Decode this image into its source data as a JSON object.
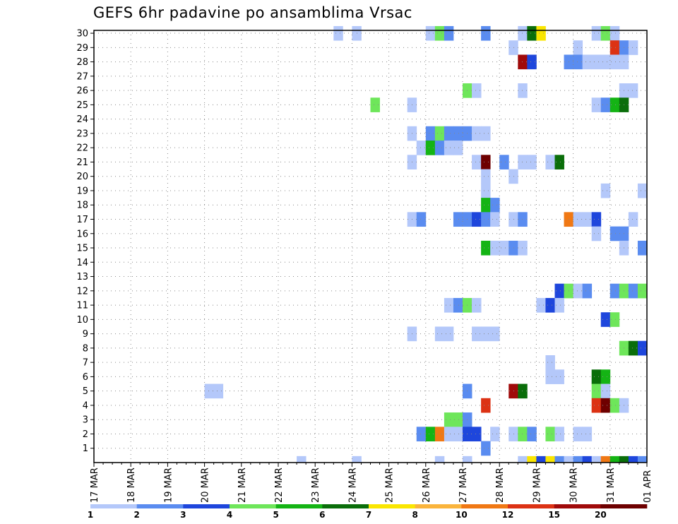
{
  "title": "GEFS 6hr padavine po ansamblima Vrsac",
  "colors": {
    "levels": [
      "#b4c8fa",
      "#5a8cf0",
      "#1e46dc",
      "#6ee65a",
      "#14b414",
      "#0a6e0a",
      "#fae600",
      "#fab43c",
      "#f07814",
      "#dc3214",
      "#a00a0a",
      "#6e0000"
    ],
    "grid": "#888888",
    "axis": "#000000"
  },
  "chart_data": {
    "type": "heatmap",
    "title": "GEFS 6hr padavine po ansamblima Vrsac",
    "x_ticks": [
      "17 MAR",
      "18 MAR",
      "19 MAR",
      "20 MAR",
      "21 MAR",
      "22 MAR",
      "23 MAR",
      "24 MAR",
      "25 MAR",
      "26 MAR",
      "27 MAR",
      "28 MAR",
      "29 MAR",
      "30 MAR",
      "31 MAR",
      "01 APR"
    ],
    "x_steps_per_day": 4,
    "x_range": [
      0,
      60
    ],
    "y_ticks": [
      1,
      2,
      3,
      4,
      5,
      6,
      7,
      8,
      9,
      10,
      11,
      12,
      13,
      14,
      15,
      16,
      17,
      18,
      19,
      20,
      21,
      22,
      23,
      24,
      25,
      26,
      27,
      28,
      29,
      30
    ],
    "y_range": [
      0,
      30
    ],
    "colorbar_labels": [
      "1",
      "2",
      "3",
      "4",
      "5",
      "6",
      "7",
      "8",
      "10",
      "12",
      "15",
      "20"
    ],
    "cells_note": "each entry: [time_step_index (6h steps from 17 MAR 00z), member, color_level_index (0 = 1 mm ... 11 = 20+ mm)]",
    "cells": [
      [
        26,
        30,
        0
      ],
      [
        28,
        30,
        0
      ],
      [
        36,
        30,
        0
      ],
      [
        37,
        30,
        3
      ],
      [
        38,
        30,
        1
      ],
      [
        42,
        30,
        1
      ],
      [
        46,
        30,
        0
      ],
      [
        47,
        30,
        5
      ],
      [
        48,
        30,
        6
      ],
      [
        54,
        30,
        0
      ],
      [
        55,
        30,
        3
      ],
      [
        56,
        30,
        0
      ],
      [
        45,
        29,
        0
      ],
      [
        52,
        29,
        0
      ],
      [
        56,
        29,
        9
      ],
      [
        57,
        29,
        1
      ],
      [
        58,
        29,
        0
      ],
      [
        46,
        28,
        10
      ],
      [
        47,
        28,
        2
      ],
      [
        51,
        28,
        1
      ],
      [
        52,
        28,
        1
      ],
      [
        53,
        28,
        0
      ],
      [
        54,
        28,
        0
      ],
      [
        55,
        28,
        0
      ],
      [
        56,
        28,
        0
      ],
      [
        57,
        28,
        0
      ],
      [
        40,
        26,
        3
      ],
      [
        41,
        26,
        0
      ],
      [
        46,
        26,
        0
      ],
      [
        57,
        26,
        0
      ],
      [
        58,
        26,
        0
      ],
      [
        30,
        25,
        3
      ],
      [
        34,
        25,
        0
      ],
      [
        54,
        25,
        0
      ],
      [
        55,
        25,
        1
      ],
      [
        56,
        25,
        4
      ],
      [
        57,
        25,
        5
      ],
      [
        34,
        23,
        0
      ],
      [
        36,
        23,
        1
      ],
      [
        37,
        23,
        3
      ],
      [
        38,
        23,
        1
      ],
      [
        39,
        23,
        1
      ],
      [
        40,
        23,
        1
      ],
      [
        41,
        23,
        0
      ],
      [
        42,
        23,
        0
      ],
      [
        35,
        22,
        0
      ],
      [
        36,
        22,
        4
      ],
      [
        37,
        22,
        1
      ],
      [
        38,
        22,
        0
      ],
      [
        39,
        22,
        0
      ],
      [
        34,
        21,
        0
      ],
      [
        41,
        21,
        0
      ],
      [
        42,
        21,
        11
      ],
      [
        44,
        21,
        1
      ],
      [
        46,
        21,
        0
      ],
      [
        47,
        21,
        0
      ],
      [
        49,
        21,
        0
      ],
      [
        50,
        21,
        5
      ],
      [
        42,
        20,
        0
      ],
      [
        45,
        20,
        0
      ],
      [
        42,
        19,
        0
      ],
      [
        55,
        19,
        0
      ],
      [
        59,
        19,
        0
      ],
      [
        42,
        18,
        4
      ],
      [
        43,
        18,
        1
      ],
      [
        34,
        17,
        0
      ],
      [
        35,
        17,
        1
      ],
      [
        39,
        17,
        1
      ],
      [
        40,
        17,
        1
      ],
      [
        41,
        17,
        2
      ],
      [
        42,
        17,
        1
      ],
      [
        43,
        17,
        0
      ],
      [
        45,
        17,
        0
      ],
      [
        46,
        17,
        1
      ],
      [
        51,
        17,
        8
      ],
      [
        52,
        17,
        0
      ],
      [
        53,
        17,
        0
      ],
      [
        54,
        17,
        2
      ],
      [
        58,
        17,
        0
      ],
      [
        54,
        16,
        0
      ],
      [
        56,
        16,
        1
      ],
      [
        57,
        16,
        1
      ],
      [
        42,
        15,
        4
      ],
      [
        43,
        15,
        0
      ],
      [
        44,
        15,
        0
      ],
      [
        45,
        15,
        1
      ],
      [
        46,
        15,
        0
      ],
      [
        57,
        15,
        0
      ],
      [
        59,
        15,
        1
      ],
      [
        50,
        12,
        2
      ],
      [
        51,
        12,
        3
      ],
      [
        52,
        12,
        0
      ],
      [
        53,
        12,
        1
      ],
      [
        56,
        12,
        1
      ],
      [
        57,
        12,
        3
      ],
      [
        58,
        12,
        1
      ],
      [
        59,
        12,
        3
      ],
      [
        38,
        11,
        0
      ],
      [
        39,
        11,
        1
      ],
      [
        40,
        11,
        3
      ],
      [
        41,
        11,
        0
      ],
      [
        48,
        11,
        0
      ],
      [
        49,
        11,
        2
      ],
      [
        50,
        11,
        0
      ],
      [
        55,
        10,
        2
      ],
      [
        56,
        10,
        3
      ],
      [
        34,
        9,
        0
      ],
      [
        37,
        9,
        0
      ],
      [
        38,
        9,
        0
      ],
      [
        41,
        9,
        0
      ],
      [
        42,
        9,
        0
      ],
      [
        43,
        9,
        0
      ],
      [
        57,
        8,
        3
      ],
      [
        58,
        8,
        5
      ],
      [
        59,
        8,
        2
      ],
      [
        49,
        7,
        0
      ],
      [
        49,
        6,
        0
      ],
      [
        50,
        6,
        0
      ],
      [
        54,
        6,
        5
      ],
      [
        55,
        6,
        4
      ],
      [
        12,
        5,
        0
      ],
      [
        13,
        5,
        0
      ],
      [
        40,
        5,
        1
      ],
      [
        45,
        5,
        10
      ],
      [
        46,
        5,
        5
      ],
      [
        54,
        5,
        3
      ],
      [
        55,
        5,
        0
      ],
      [
        42,
        4,
        9
      ],
      [
        54,
        4,
        9
      ],
      [
        55,
        4,
        11
      ],
      [
        56,
        4,
        3
      ],
      [
        57,
        4,
        0
      ],
      [
        38,
        3,
        3
      ],
      [
        39,
        3,
        3
      ],
      [
        40,
        3,
        1
      ],
      [
        35,
        2,
        1
      ],
      [
        36,
        2,
        4
      ],
      [
        37,
        2,
        8
      ],
      [
        38,
        2,
        0
      ],
      [
        39,
        2,
        0
      ],
      [
        40,
        2,
        2
      ],
      [
        41,
        2,
        2
      ],
      [
        43,
        2,
        0
      ],
      [
        45,
        2,
        0
      ],
      [
        46,
        2,
        3
      ],
      [
        47,
        2,
        1
      ],
      [
        49,
        2,
        3
      ],
      [
        50,
        2,
        0
      ],
      [
        52,
        2,
        0
      ],
      [
        53,
        2,
        0
      ],
      [
        42,
        1,
        1
      ],
      [
        22,
        0,
        0
      ],
      [
        28,
        0,
        0
      ],
      [
        37,
        0,
        0
      ],
      [
        40,
        0,
        0
      ],
      [
        46,
        0,
        0
      ],
      [
        47,
        0,
        6
      ],
      [
        48,
        0,
        2
      ],
      [
        49,
        0,
        6
      ],
      [
        50,
        0,
        1
      ],
      [
        51,
        0,
        0
      ],
      [
        52,
        0,
        1
      ],
      [
        53,
        0,
        2
      ],
      [
        54,
        0,
        0
      ],
      [
        55,
        0,
        8
      ],
      [
        56,
        0,
        4
      ],
      [
        57,
        0,
        5
      ],
      [
        58,
        0,
        2
      ],
      [
        59,
        0,
        1
      ]
    ]
  }
}
